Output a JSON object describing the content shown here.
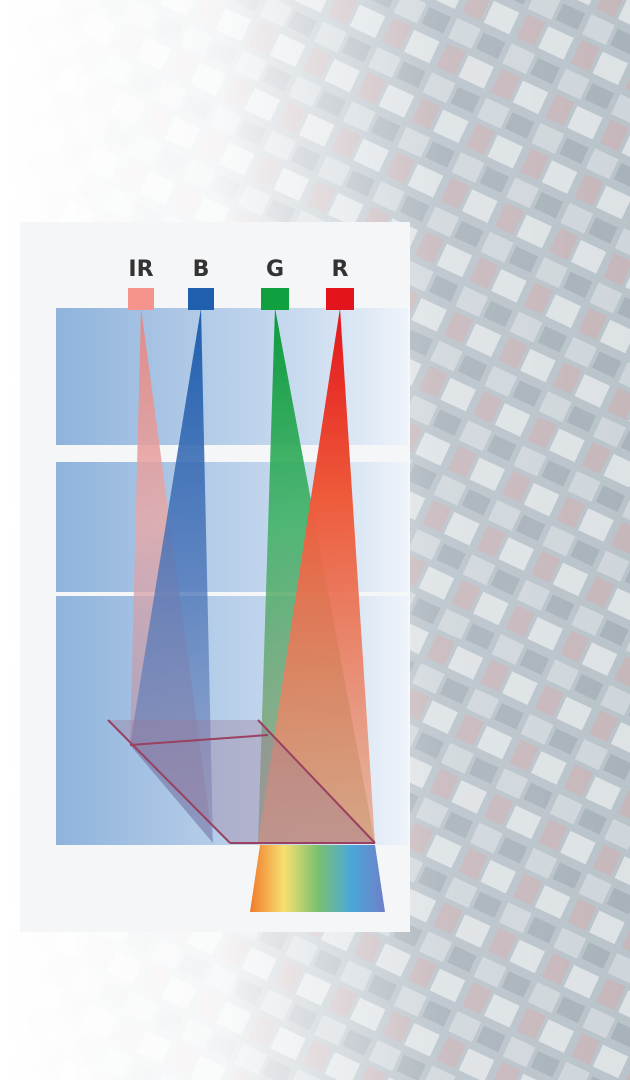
{
  "bands": [
    {
      "label": "IR",
      "color": "#f4948c"
    },
    {
      "label": "B",
      "color": "#1f5fae"
    },
    {
      "label": "G",
      "color": "#10a040"
    },
    {
      "label": "R",
      "color": "#e3141b"
    }
  ]
}
